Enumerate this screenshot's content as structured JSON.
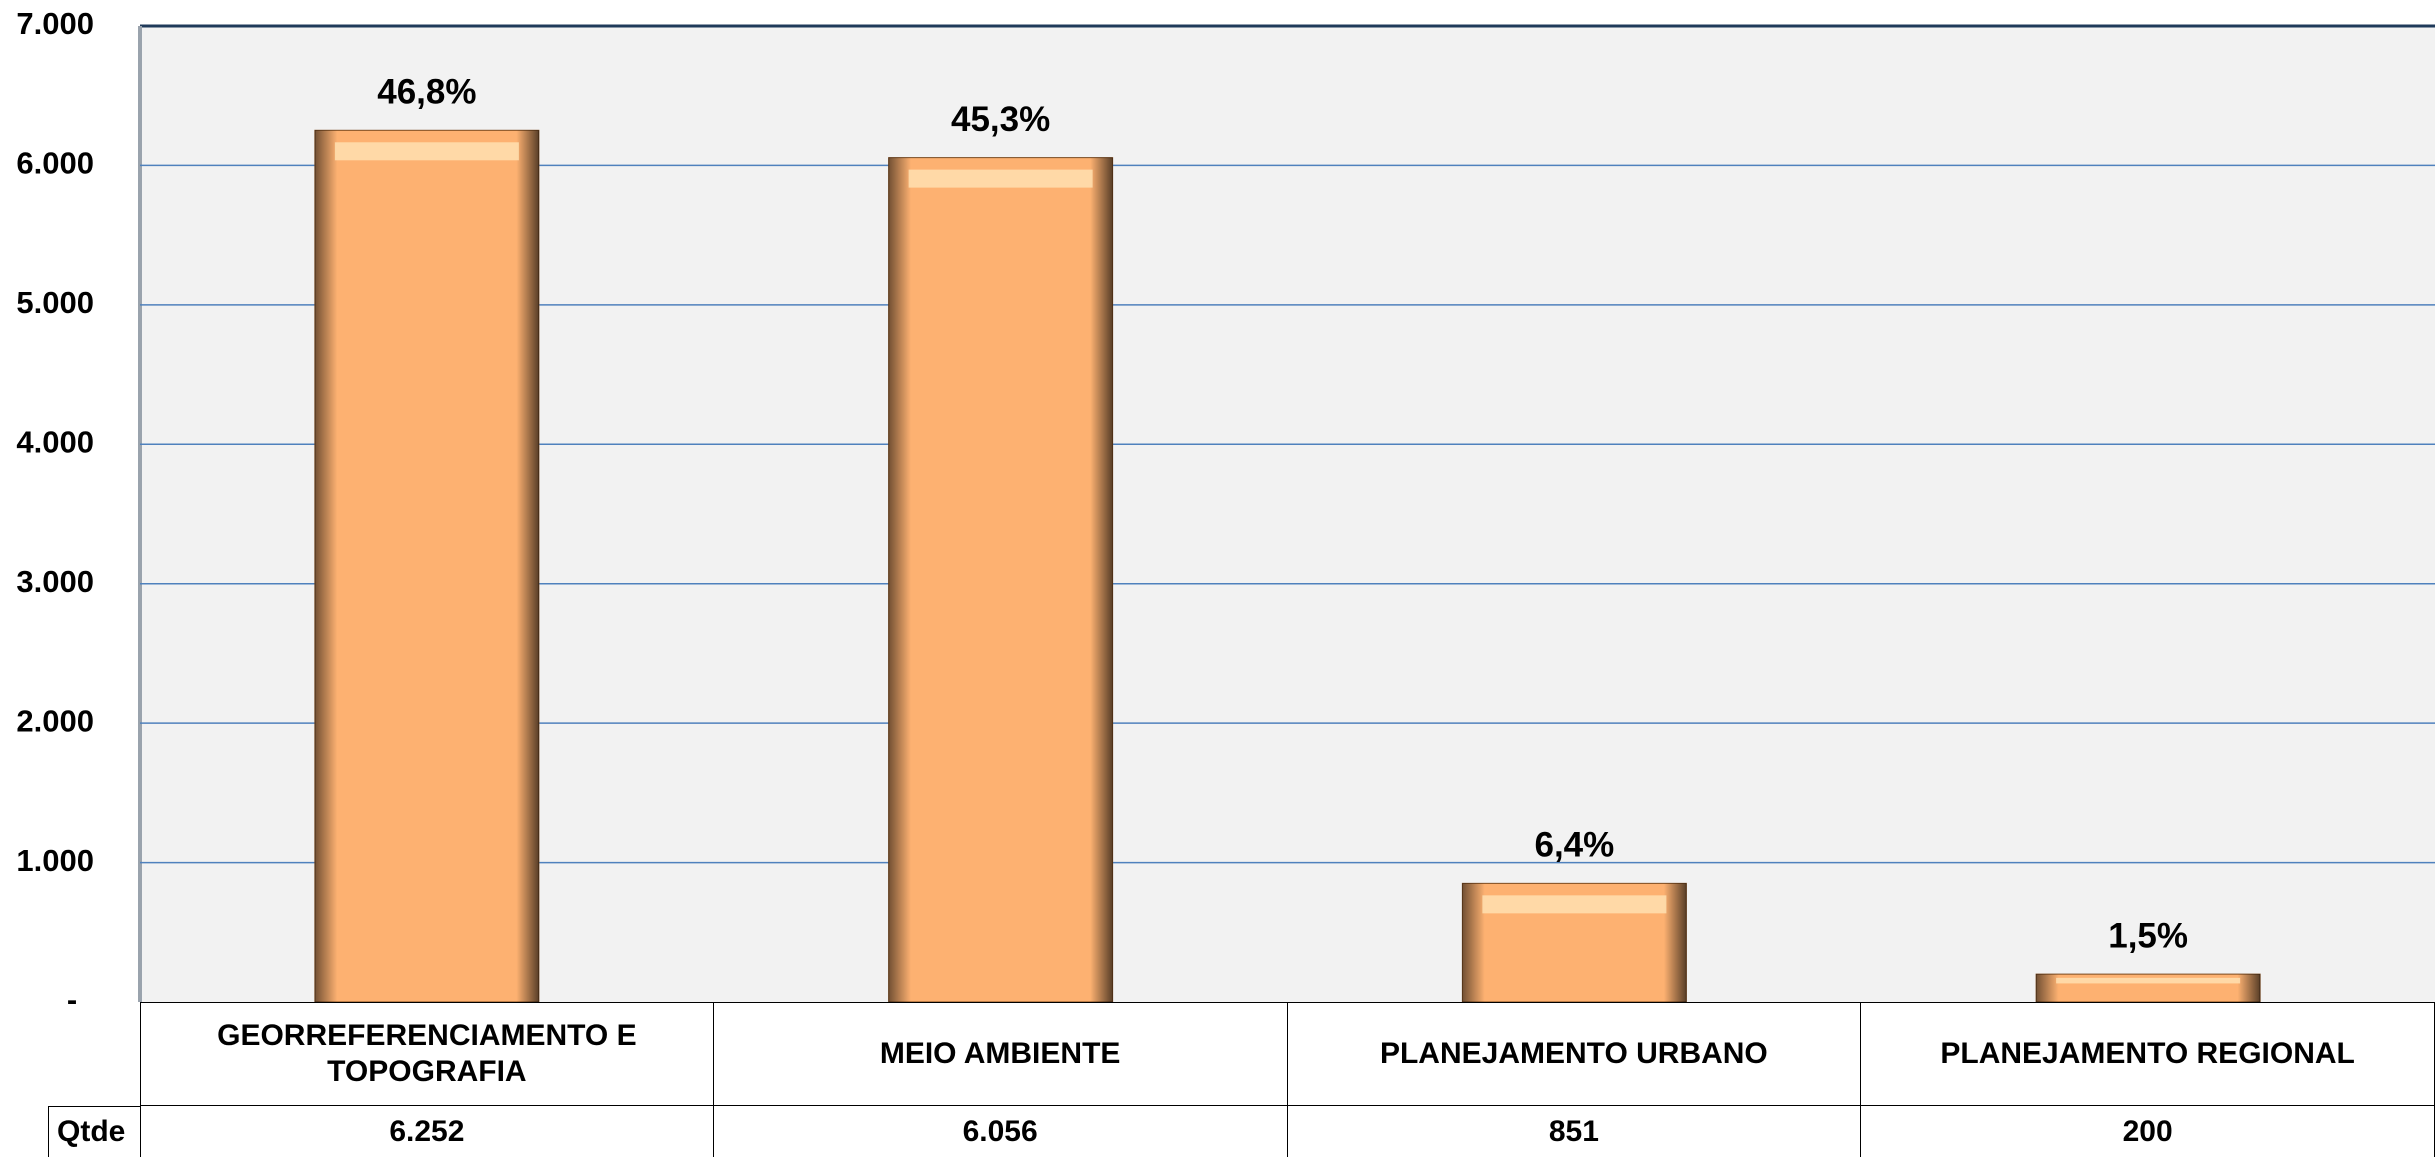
{
  "chart_data": {
    "type": "bar",
    "categories": [
      "GEORREFERENCIAMENTO E TOPOGRAFIA",
      "MEIO AMBIENTE",
      "PLANEJAMENTO URBANO",
      "PLANEJAMENTO REGIONAL"
    ],
    "values": [
      6252,
      6056,
      851,
      200
    ],
    "value_labels": [
      "6.252",
      "6.056",
      "851",
      "200"
    ],
    "percent_labels": [
      "46,8%",
      "45,3%",
      "6,4%",
      "1,5%"
    ],
    "table_row_label": "Qtde",
    "color": "#fdb171",
    "ylim": [
      0,
      7000
    ],
    "yticks": [
      {
        "value": 0,
        "label": "-"
      },
      {
        "value": 1000,
        "label": "1.000"
      },
      {
        "value": 2000,
        "label": "2.000"
      },
      {
        "value": 3000,
        "label": "3.000"
      },
      {
        "value": 4000,
        "label": "4.000"
      },
      {
        "value": 5000,
        "label": "5.000"
      },
      {
        "value": 6000,
        "label": "6.000"
      },
      {
        "value": 7000,
        "label": "7.000"
      }
    ],
    "grid": true
  }
}
